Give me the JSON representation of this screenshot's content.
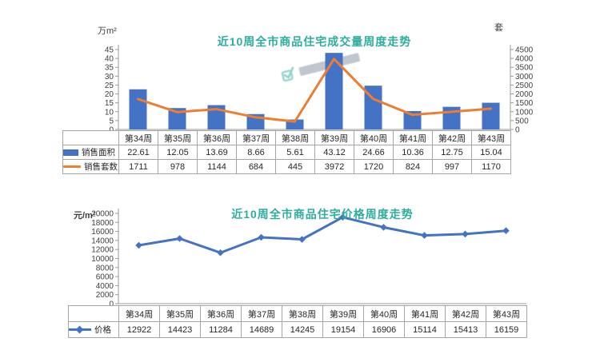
{
  "page": {
    "background": "#ffffff"
  },
  "watermark": {
    "present": true,
    "icon": "site-logo-watermark",
    "icon_color": "#35ada6",
    "text_color": "#8e98ab"
  },
  "chart_data": [
    {
      "type": "bar",
      "combo": "bar+line",
      "title": "近10周全市商品住宅成交量周度走势",
      "title_color": "#2EAC9C",
      "categories": [
        "第34周",
        "第35周",
        "第36周",
        "第37周",
        "第38周",
        "第39周",
        "第40周",
        "第41周",
        "第42周",
        "第43周"
      ],
      "left_axis": {
        "label": "万m²",
        "min": 0,
        "max": 45,
        "step": 5
      },
      "right_axis": {
        "label": "套",
        "min": 0,
        "max": 4500,
        "step": 500
      },
      "grid": false,
      "legend_position": "table-left",
      "series": [
        {
          "name": "销售面积",
          "type": "bar",
          "axis": "left",
          "color": "#4472C4",
          "values": [
            22.61,
            12.05,
            13.69,
            8.66,
            5.61,
            43.12,
            24.66,
            10.36,
            12.75,
            15.04
          ]
        },
        {
          "name": "销售套数",
          "type": "line",
          "axis": "right",
          "color": "#ED7D31",
          "values": [
            1711,
            978,
            1144,
            684,
            445,
            3972,
            1720,
            824,
            997,
            1170
          ]
        }
      ]
    },
    {
      "type": "line",
      "title": "近10周全市商品住宅价格周度走势",
      "title_color": "#2EAC9C",
      "categories": [
        "第34周",
        "第35周",
        "第36周",
        "第37周",
        "第38周",
        "第39周",
        "第40周",
        "第41周",
        "第42周",
        "第43周"
      ],
      "left_axis": {
        "label": "元/m²",
        "min": 0,
        "max": 20000,
        "step": 2000
      },
      "grid": false,
      "legend_position": "table-left",
      "series": [
        {
          "name": "价格",
          "type": "line",
          "axis": "left",
          "color": "#4472C4",
          "marker": "diamond",
          "values": [
            12922,
            14423,
            11284,
            14689,
            14245,
            19154,
            16906,
            15114,
            15413,
            16159
          ]
        }
      ]
    }
  ]
}
